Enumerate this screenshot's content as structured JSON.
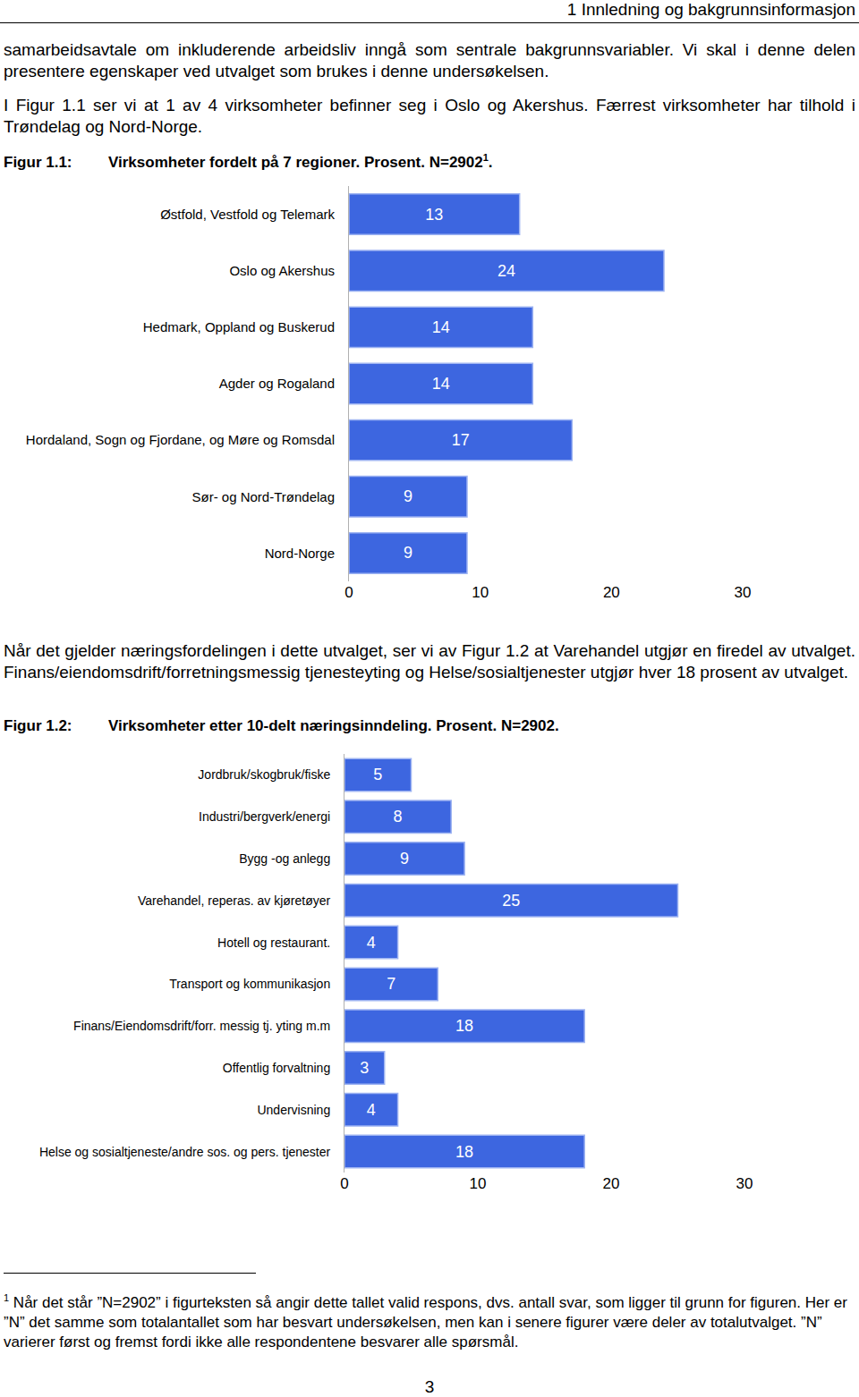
{
  "header": "1 Innledning og bakgrunnsinformasjon",
  "paragraphs": [
    "samarbeidsavtale om inkluderende arbeidsliv inngå som sentrale bakgrunnsvariabler. Vi skal i denne delen presentere egenskaper ved utvalget som brukes i denne undersøkelsen.",
    "I Figur 1.1 ser vi at 1 av 4 virksomheter befinner seg i Oslo og Akershus. Færrest virksomheter har tilhold i Trøndelag og Nord-Norge.",
    "Når det gjelder næringsfordelingen i dette utvalget, ser vi av Figur 1.2 at Varehandel utgjør en firedel av utvalget. Finans/eiendomsdrift/forretningsmessig tjenesteyting og Helse/sosialtjenester utgjør hver 18 prosent av utvalget."
  ],
  "figures": [
    {
      "label": "Figur 1.1:",
      "caption": "Virksomheter fordelt på 7 regioner. Prosent. N=2902",
      "note_mark": "1",
      "caption_end": "."
    },
    {
      "label": "Figur 1.2:",
      "caption": "Virksomheter etter 10-delt næringsinndeling. Prosent. N=2902."
    }
  ],
  "footnote": {
    "mark": "1",
    "text": "Når det står ”N=2902” i figurteksten så angir dette tallet valid respons, dvs. antall svar, som ligger til grunn for figuren. Her er ”N” det samme som totalantallet som har besvart undersøkelsen, men kan i senere figurer være deler av totalutvalget. ”N” varierer først og fremst fordi ikke alle respondentene besvarer alle spørsmål."
  },
  "page_number": "3",
  "chart_data": [
    {
      "type": "bar",
      "orientation": "horizontal",
      "categories": [
        "Østfold, Vestfold og Telemark",
        "Oslo og Akershus",
        "Hedmark, Oppland og Buskerud",
        "Agder og Rogaland",
        "Hordaland, Sogn og Fjordane, og Møre og Romsdal",
        "Sør- og Nord-Trøndelag",
        "Nord-Norge"
      ],
      "values": [
        13,
        24,
        14,
        14,
        17,
        9,
        9
      ],
      "color": "#3d66e0",
      "xlim": [
        0,
        30
      ],
      "xticks": [
        0,
        10,
        20,
        30
      ],
      "data_labels": true,
      "grid": false
    },
    {
      "type": "bar",
      "orientation": "horizontal",
      "categories": [
        "Jordbruk/skogbruk/fiske",
        "Industri/bergverk/energi",
        "Bygg -og anlegg",
        "Varehandel, reperas. av kjøretøyer",
        "Hotell og restaurant.",
        "Transport og kommunikasjon",
        "Finans/Eiendomsdrift/forr. messig tj. yting m.m",
        "Offentlig forvaltning",
        "Undervisning",
        "Helse og sosialtjeneste/andre sos. og pers. tjenester"
      ],
      "values": [
        5,
        8,
        9,
        25,
        4,
        7,
        18,
        3,
        4,
        18
      ],
      "color": "#3d66e0",
      "xlim": [
        0,
        30
      ],
      "xticks": [
        0,
        10,
        20,
        30
      ],
      "data_labels": true,
      "grid": false
    }
  ]
}
